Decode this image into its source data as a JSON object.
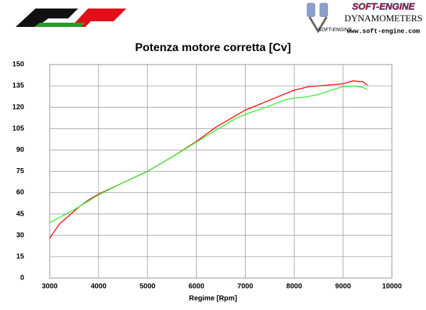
{
  "branding": {
    "brand": "SOFT-ENGINE",
    "tagline": "DYNAMOMETERS",
    "url": "www.soft-engine.com",
    "logo_text": "SOFT-ENGINE"
  },
  "chart_data": {
    "type": "line",
    "title": "Potenza motore corretta [Cv]",
    "x_label": "Regime [Rpm]",
    "xlim": [
      3000,
      10000
    ],
    "xticks": [
      3000,
      4000,
      5000,
      6000,
      7000,
      8000,
      9000,
      10000
    ],
    "ylim": [
      0,
      150
    ],
    "yticks": [
      0,
      15,
      30,
      45,
      60,
      75,
      90,
      105,
      120,
      135,
      150
    ],
    "grid": true,
    "series": [
      {
        "color": "#ff0000",
        "x": [
          3000,
          3100,
          3200,
          3400,
          3600,
          3800,
          4000,
          4500,
          5000,
          5500,
          6000,
          6400,
          6800,
          7000,
          7500,
          8000,
          8300,
          8500,
          9000,
          9200,
          9400,
          9500
        ],
        "values": [
          28,
          33,
          38,
          44,
          50,
          55,
          59,
          67,
          75,
          85,
          96,
          106,
          114,
          118,
          125,
          132,
          134.5,
          135,
          136.5,
          138.5,
          138,
          135.5
        ]
      },
      {
        "color": "#33ee33",
        "x": [
          3000,
          3500,
          4000,
          4500,
          5000,
          5500,
          6000,
          6400,
          6800,
          7000,
          7500,
          7800,
          8000,
          8200,
          8500,
          8800,
          9000,
          9200,
          9400,
          9500
        ],
        "values": [
          39,
          48,
          58.5,
          67,
          75,
          85,
          95.5,
          104,
          112,
          115,
          121,
          125,
          126.5,
          127,
          129,
          132.5,
          134.5,
          135,
          134,
          132.5
        ]
      }
    ]
  }
}
